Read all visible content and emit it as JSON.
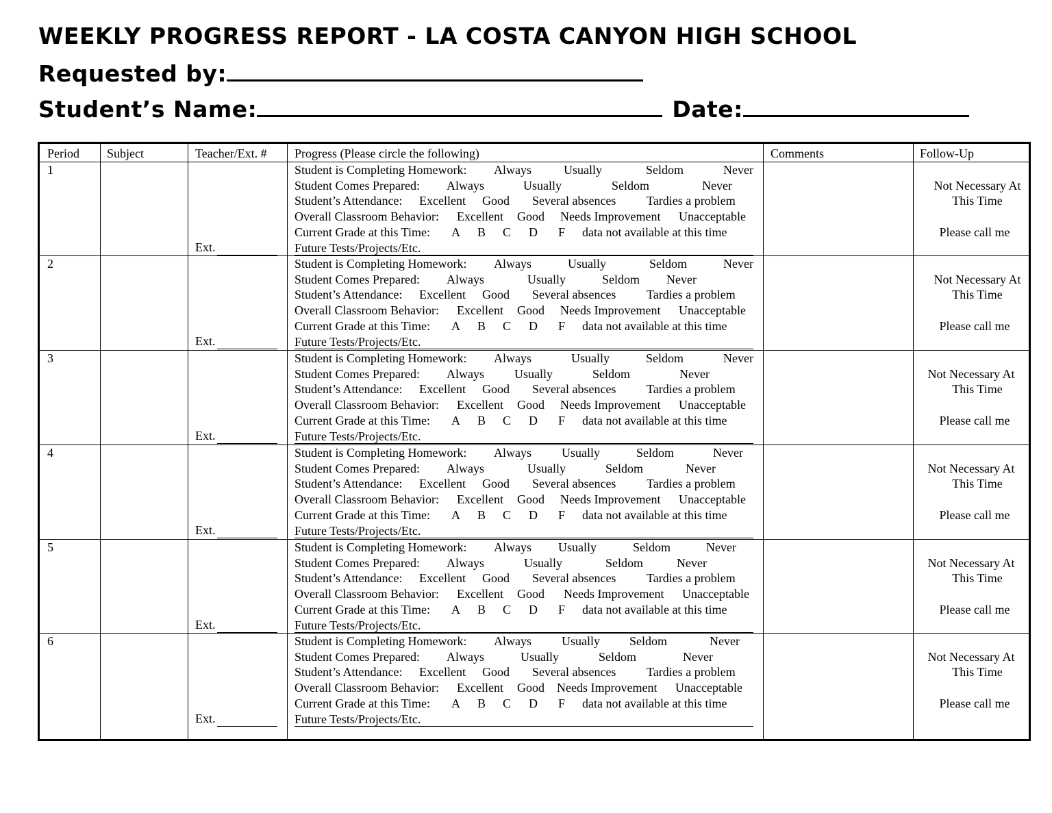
{
  "title": "WEEKLY PROGRESS REPORT - LA COSTA CANYON HIGH SCHOOL",
  "requested_by_label": "Requested by:",
  "student_name_label": "Student’s Name:",
  "date_label": "Date:",
  "table": {
    "headers": [
      "Period",
      "Subject",
      "Teacher/Ext. #",
      "Progress (Please circle the following)",
      "Comments",
      "Follow-Up"
    ],
    "ext_label": "Ext.",
    "progress_lines": [
      {
        "label": "Student is Completing Homework:",
        "options": [
          "Always",
          "Usually",
          "Seldom",
          "Never"
        ]
      },
      {
        "label": "Student Comes Prepared:",
        "options": [
          "Always",
          "Usually",
          "Seldom",
          "Never"
        ]
      },
      {
        "label": "Student’s Attendance:",
        "options": [
          "Excellent",
          "Good",
          "Several absences",
          "Tardies a problem"
        ]
      },
      {
        "label": "Overall Classroom Behavior:",
        "options": [
          "Excellent",
          "Good",
          "Needs Improvement",
          "Unacceptable"
        ]
      },
      {
        "label": "Current Grade at this Time:",
        "options": [
          "A",
          "B",
          "C",
          "D",
          "F",
          "data not available at this time"
        ]
      },
      {
        "label": "Future Tests/Projects/Etc.",
        "options": []
      }
    ],
    "follow_up": {
      "line1": "Not Necessary At",
      "line2": "This Time",
      "line3": "Please call me"
    },
    "rows": [
      {
        "period": "1"
      },
      {
        "period": "2"
      },
      {
        "period": "3"
      },
      {
        "period": "4"
      },
      {
        "period": "5"
      },
      {
        "period": "6"
      }
    ]
  }
}
